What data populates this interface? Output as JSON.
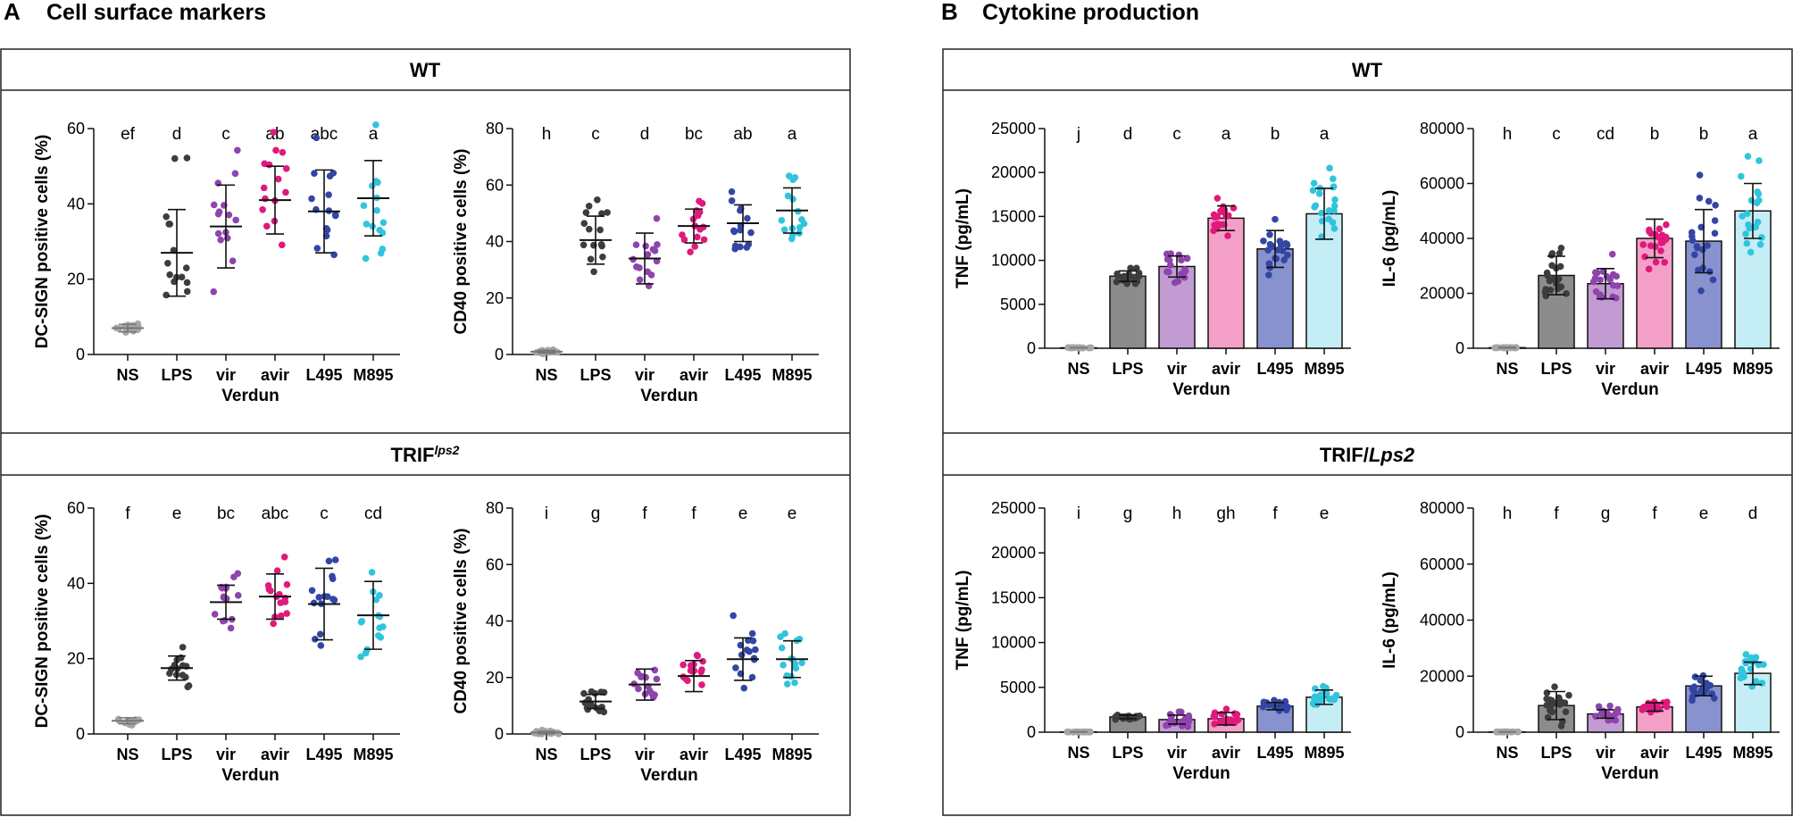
{
  "panels": [
    {
      "letter": "A",
      "title": "Cell surface markers"
    },
    {
      "letter": "B",
      "title": "Cytokine production"
    }
  ],
  "sections": {
    "A_wt": "WT",
    "A_trif_base": "TRIF",
    "A_trif_sup": "lps2",
    "B_wt": "WT",
    "B_trif_base": "TRIF/",
    "B_trif_it": "Lps2"
  },
  "colors": {
    "NS": "#a6a6a6",
    "LPS": "#3d3d3d",
    "vir": "#8e44ad",
    "avir": "#e0197d",
    "L495": "#3346a4",
    "M895": "#31c4dd",
    "bar_fill": [
      "#a6a6a6",
      "#8c8c8c",
      "#c39bd3",
      "#f4a0c6",
      "#8792ce",
      "#c5edf5"
    ]
  },
  "chart_data": [
    {
      "id": "A_wt_dcsign",
      "panel": "A",
      "section": "WT",
      "type": "scatter",
      "ylabel": "DC-SIGN positive cells (%)",
      "xlabel": "Verdun",
      "ylim": [
        0,
        60
      ],
      "yticks": [
        "0",
        "20",
        "40",
        "60"
      ],
      "categories": [
        "NS",
        "LPS",
        "vir",
        "avir",
        "L495",
        "M895"
      ],
      "means": [
        7,
        27,
        34,
        41,
        38,
        41.5
      ],
      "sd": [
        1,
        11.5,
        11,
        9,
        11,
        10
      ],
      "letters": [
        "ef",
        "d",
        "c",
        "ab",
        "abc",
        "a"
      ],
      "n": 15
    },
    {
      "id": "A_wt_cd40",
      "panel": "A",
      "section": "WT",
      "type": "scatter",
      "ylabel": "CD40 positive cells (%)",
      "xlabel": "Verdun",
      "ylim": [
        0,
        80
      ],
      "yticks": [
        "0",
        "20",
        "40",
        "60",
        "80"
      ],
      "categories": [
        "NS",
        "LPS",
        "vir",
        "avir",
        "L495",
        "M895"
      ],
      "means": [
        1,
        40.5,
        34,
        45.5,
        46.5,
        51
      ],
      "sd": [
        0.5,
        8.5,
        9,
        6,
        6.5,
        8
      ],
      "letters": [
        "h",
        "c",
        "d",
        "bc",
        "ab",
        "a"
      ],
      "n": 15
    },
    {
      "id": "A_trif_dcsign",
      "panel": "A",
      "section": "TRIF lps2",
      "type": "scatter",
      "ylabel": "DC-SIGN positive cells (%)",
      "xlabel": "Verdun",
      "ylim": [
        0,
        60
      ],
      "yticks": [
        "0",
        "20",
        "40",
        "60"
      ],
      "categories": [
        "NS",
        "LPS",
        "vir",
        "avir",
        "L495",
        "M895"
      ],
      "means": [
        3.5,
        17.5,
        35,
        36.5,
        34.5,
        31.5
      ],
      "sd": [
        0.8,
        3.2,
        4.5,
        6,
        9.5,
        9
      ],
      "letters": [
        "f",
        "e",
        "bc",
        "abc",
        "c",
        "cd"
      ],
      "n": 15
    },
    {
      "id": "A_trif_cd40",
      "panel": "A",
      "section": "TRIF lps2",
      "type": "scatter",
      "ylabel": "CD40 positive cells (%)",
      "xlabel": "Verdun",
      "ylim": [
        0,
        80
      ],
      "yticks": [
        "0",
        "20",
        "40",
        "60",
        "80"
      ],
      "categories": [
        "NS",
        "LPS",
        "vir",
        "avir",
        "L495",
        "M895"
      ],
      "means": [
        0.5,
        11.5,
        17.5,
        20.5,
        26.5,
        26.5
      ],
      "sd": [
        0.4,
        2.5,
        5.5,
        5.5,
        7.5,
        6.5
      ],
      "letters": [
        "i",
        "g",
        "f",
        "f",
        "e",
        "e"
      ],
      "n": 15
    },
    {
      "id": "B_wt_tnf",
      "panel": "B",
      "section": "WT",
      "type": "bar",
      "ylabel": "TNF (pg/mL)",
      "xlabel": "Verdun",
      "ylim": [
        0,
        25000
      ],
      "yticks": [
        "0",
        "5000",
        "10000",
        "15000",
        "20000",
        "25000"
      ],
      "categories": [
        "NS",
        "LPS",
        "vir",
        "avir",
        "L495",
        "M895"
      ],
      "means": [
        50,
        8200,
        9300,
        14800,
        11300,
        15300
      ],
      "sd": [
        20,
        600,
        1200,
        1400,
        2100,
        2900
      ],
      "letters": [
        "j",
        "d",
        "c",
        "a",
        "b",
        "a"
      ],
      "n": 20
    },
    {
      "id": "B_wt_il6",
      "panel": "B",
      "section": "WT",
      "type": "bar",
      "ylabel": "IL-6 (pg/mL)",
      "xlabel": "Verdun",
      "ylim": [
        0,
        80000
      ],
      "yticks": [
        "0",
        "20000",
        "40000",
        "60000",
        "80000"
      ],
      "categories": [
        "NS",
        "LPS",
        "vir",
        "avir",
        "L495",
        "M895"
      ],
      "means": [
        200,
        26500,
        23500,
        40000,
        39000,
        50000
      ],
      "sd": [
        100,
        7000,
        5500,
        7000,
        11500,
        10000
      ],
      "letters": [
        "h",
        "c",
        "cd",
        "b",
        "b",
        "a"
      ],
      "n": 20
    },
    {
      "id": "B_trif_tnf",
      "panel": "B",
      "section": "TRIF/Lps2",
      "type": "bar",
      "ylabel": "TNF (pg/mL)",
      "xlabel": "Verdun",
      "ylim": [
        0,
        25000
      ],
      "yticks": [
        "0",
        "5000",
        "10000",
        "15000",
        "20000",
        "25000"
      ],
      "categories": [
        "NS",
        "LPS",
        "vir",
        "avir",
        "L495",
        "M895"
      ],
      "means": [
        30,
        1700,
        1400,
        1500,
        2900,
        3900
      ],
      "sd": [
        15,
        200,
        500,
        700,
        400,
        800
      ],
      "letters": [
        "i",
        "g",
        "h",
        "gh",
        "f",
        "e"
      ],
      "n": 20
    },
    {
      "id": "B_trif_il6",
      "panel": "B",
      "section": "TRIF/Lps2",
      "type": "bar",
      "ylabel": "IL-6 (pg/mL)",
      "xlabel": "Verdun",
      "ylim": [
        0,
        80000
      ],
      "yticks": [
        "0",
        "20000",
        "40000",
        "60000",
        "80000"
      ],
      "categories": [
        "NS",
        "LPS",
        "vir",
        "avir",
        "L495",
        "M895"
      ],
      "means": [
        100,
        9500,
        6500,
        9000,
        16500,
        21000
      ],
      "sd": [
        50,
        5000,
        1500,
        1500,
        3500,
        4000
      ],
      "letters": [
        "h",
        "f",
        "g",
        "f",
        "e",
        "d"
      ],
      "n": 20
    }
  ]
}
